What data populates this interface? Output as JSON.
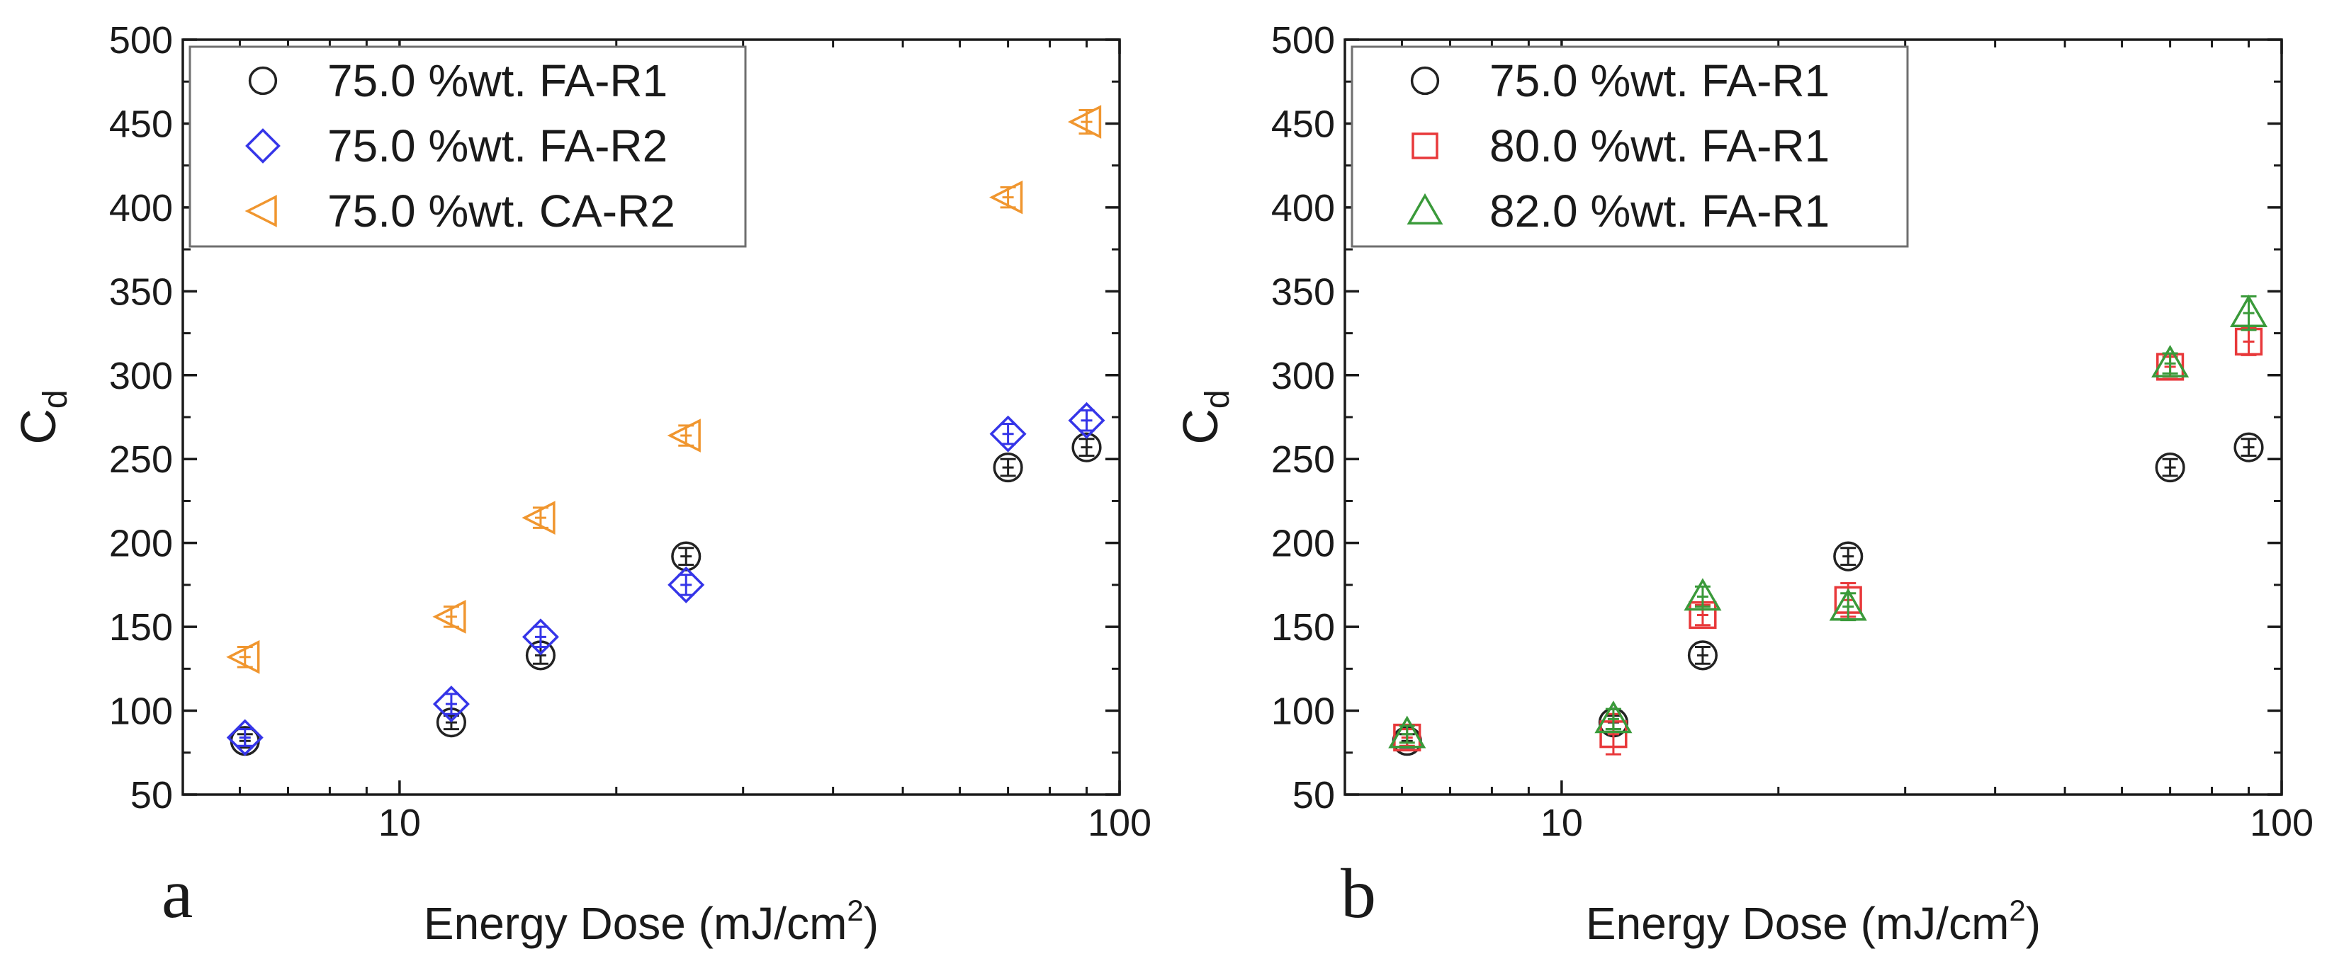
{
  "figure": {
    "background": "#ffffff"
  },
  "chart_data": [
    {
      "type": "scatter",
      "panel_label": "a",
      "title": "",
      "xlabel": {
        "text": "Energy Dose (mJ/cm",
        "sup": "2",
        "tail": ")"
      },
      "ylabel": {
        "text": "C",
        "sub": "d"
      },
      "xscale": "log",
      "xlim": [
        5,
        100
      ],
      "ylim": [
        50,
        500
      ],
      "xticks": [
        10,
        100
      ],
      "xtick_labels": [
        "10",
        "100"
      ],
      "yticks": [
        50,
        100,
        150,
        200,
        250,
        300,
        350,
        400,
        450,
        500
      ],
      "ytick_labels": [
        "50",
        "100",
        "150",
        "200",
        "250",
        "300",
        "350",
        "400",
        "450",
        "500"
      ],
      "grid": false,
      "legend_position": "top-left",
      "series": [
        {
          "name": "75.0 %wt. FA-R1",
          "marker": "circle",
          "color": "#222222",
          "x": [
            6.1,
            11.8,
            15.7,
            25.0,
            70.0,
            90.0
          ],
          "y": [
            82,
            93,
            133,
            192,
            245,
            257
          ],
          "err": [
            4,
            4,
            5,
            5,
            5,
            5
          ]
        },
        {
          "name": "75.0 %wt. FA-R2",
          "marker": "diamond",
          "color": "#3535e8",
          "x": [
            6.1,
            11.8,
            15.7,
            25.0,
            70.0,
            90.0
          ],
          "y": [
            84,
            104,
            144,
            175,
            265,
            273
          ],
          "err": [
            5,
            6,
            6,
            6,
            6,
            6
          ]
        },
        {
          "name": "75.0 %wt. CA-R2",
          "marker": "triangle-left",
          "color": "#f0962f",
          "x": [
            6.1,
            11.8,
            15.7,
            25.0,
            70.0,
            90.0
          ],
          "y": [
            132,
            156,
            215,
            264,
            406,
            451
          ],
          "err": [
            6,
            6,
            6,
            6,
            6,
            7
          ]
        }
      ]
    },
    {
      "type": "scatter",
      "panel_label": "b",
      "title": "",
      "xlabel": {
        "text": "Energy Dose (mJ/cm",
        "sup": "2",
        "tail": ")"
      },
      "ylabel": {
        "text": "C",
        "sub": "d"
      },
      "xscale": "log",
      "xlim": [
        5,
        100
      ],
      "ylim": [
        50,
        500
      ],
      "xticks": [
        10,
        100
      ],
      "xtick_labels": [
        "10",
        "100"
      ],
      "yticks": [
        50,
        100,
        150,
        200,
        250,
        300,
        350,
        400,
        450,
        500
      ],
      "ytick_labels": [
        "50",
        "100",
        "150",
        "200",
        "250",
        "300",
        "350",
        "400",
        "450",
        "500"
      ],
      "grid": false,
      "legend_position": "top-left",
      "series": [
        {
          "name": "75.0 %wt. FA-R1",
          "marker": "circle",
          "color": "#222222",
          "x": [
            6.1,
            11.8,
            15.7,
            25.0,
            70.0,
            90.0
          ],
          "y": [
            82,
            93,
            133,
            192,
            245,
            257
          ],
          "err": [
            4,
            4,
            5,
            5,
            5,
            5
          ]
        },
        {
          "name": "80.0 %wt. FA-R1",
          "marker": "square",
          "color": "#e8383a",
          "x": [
            6.1,
            11.8,
            15.7,
            25.0,
            70.0,
            90.0
          ],
          "y": [
            84,
            86,
            157,
            166,
            305,
            320
          ],
          "err": [
            5,
            12,
            6,
            10,
            6,
            8
          ]
        },
        {
          "name": "82.0 %wt. FA-R1",
          "marker": "triangle-up",
          "color": "#3a9a3a",
          "x": [
            6.1,
            11.8,
            15.7,
            25.0,
            70.0,
            90.0
          ],
          "y": [
            86,
            95,
            168,
            162,
            307,
            337
          ],
          "err": [
            5,
            6,
            6,
            8,
            6,
            10
          ]
        }
      ]
    }
  ]
}
